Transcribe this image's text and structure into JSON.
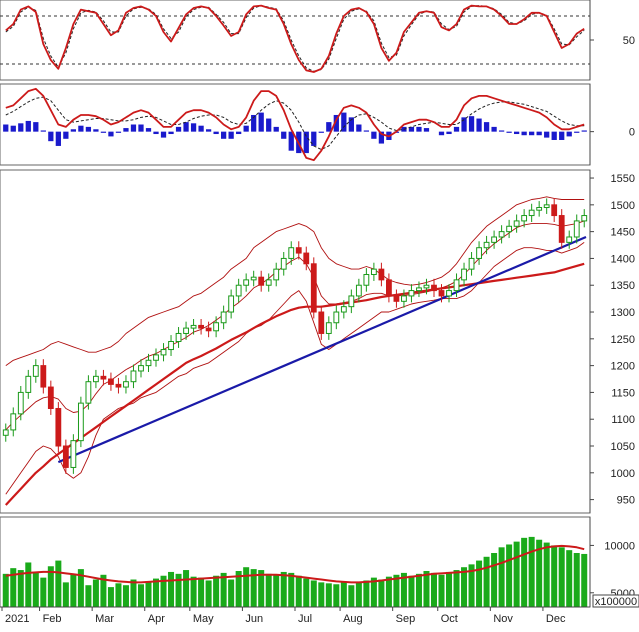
{
  "chart_data": [
    {
      "panel": "stochastic",
      "type": "line",
      "y_tick_labels": [
        "50"
      ],
      "reference_levels": [
        80,
        20
      ],
      "ylim": [
        0,
        100
      ],
      "series": [
        {
          "values": [
            62,
            70,
            88,
            92,
            85,
            45,
            25,
            14,
            40,
            70,
            88,
            86,
            84,
            70,
            56,
            62,
            84,
            90,
            92,
            88,
            80,
            60,
            48,
            65,
            82,
            90,
            92,
            90,
            80,
            68,
            55,
            60,
            82,
            92,
            93,
            90,
            88,
            70,
            45,
            25,
            12,
            10,
            14,
            30,
            58,
            80,
            88,
            90,
            85,
            70,
            40,
            24,
            34,
            60,
            72,
            84,
            86,
            84,
            66,
            62,
            70,
            88,
            93,
            92,
            92,
            88,
            80,
            70,
            70,
            76,
            84,
            84,
            80,
            60,
            40,
            45,
            58,
            64
          ]
        },
        {
          "values": [
            60,
            67,
            85,
            91,
            87,
            52,
            30,
            16,
            34,
            64,
            84,
            87,
            85,
            74,
            60,
            60,
            80,
            89,
            91,
            89,
            82,
            64,
            52,
            60,
            79,
            88,
            91,
            91,
            82,
            72,
            58,
            58,
            78,
            90,
            93,
            91,
            89,
            74,
            50,
            30,
            15,
            11,
            13,
            26,
            52,
            76,
            86,
            89,
            86,
            74,
            46,
            28,
            31,
            55,
            69,
            82,
            86,
            85,
            70,
            63,
            67,
            85,
            92,
            93,
            92,
            89,
            82,
            72,
            70,
            74,
            82,
            84,
            81,
            64,
            45,
            44,
            54,
            62
          ]
        }
      ]
    },
    {
      "panel": "macd",
      "type": "line",
      "y_tick_labels": [
        "0"
      ],
      "series": [
        {
          "values": [
            20,
            22,
            28,
            34,
            36,
            30,
            18,
            6,
            4,
            10,
            14,
            14,
            13,
            10,
            6,
            8,
            12,
            16,
            18,
            16,
            10,
            4,
            4,
            10,
            16,
            18,
            18,
            16,
            12,
            6,
            2,
            4,
            12,
            26,
            34,
            34,
            30,
            18,
            2,
            -10,
            -22,
            -24,
            -16,
            -4,
            10,
            20,
            22,
            20,
            16,
            6,
            -2,
            -4,
            0,
            6,
            8,
            10,
            10,
            8,
            4,
            4,
            10,
            22,
            28,
            30,
            30,
            28,
            26,
            24,
            22,
            20,
            18,
            16,
            12,
            6,
            2,
            2,
            4,
            6
          ]
        },
        {
          "values": [
            14,
            17,
            21,
            25,
            28,
            29,
            26,
            18,
            10,
            8,
            9,
            10,
            11,
            11,
            10,
            9,
            9,
            10,
            12,
            13,
            12,
            9,
            6,
            6,
            8,
            11,
            13,
            14,
            14,
            12,
            8,
            6,
            7,
            12,
            18,
            23,
            26,
            24,
            18,
            8,
            -4,
            -12,
            -15,
            -12,
            -4,
            4,
            10,
            14,
            15,
            12,
            8,
            3,
            1,
            2,
            4,
            6,
            7,
            8,
            7,
            6,
            6,
            10,
            15,
            19,
            22,
            24,
            25,
            25,
            24,
            23,
            21,
            19,
            17,
            13,
            9,
            6,
            5,
            5
          ]
        }
      ],
      "histogram": [
        6,
        5,
        7,
        9,
        8,
        1,
        -8,
        -12,
        -6,
        2,
        5,
        4,
        2,
        -1,
        -4,
        -1,
        3,
        6,
        6,
        3,
        -2,
        -5,
        -2,
        4,
        8,
        7,
        5,
        2,
        -2,
        -6,
        -6,
        -2,
        5,
        14,
        16,
        11,
        4,
        -6,
        -16,
        -18,
        -18,
        -12,
        -1,
        8,
        14,
        16,
        12,
        6,
        1,
        -6,
        -10,
        -7,
        -1,
        4,
        4,
        4,
        3,
        0,
        -3,
        -2,
        4,
        12,
        13,
        11,
        8,
        4,
        1,
        -1,
        -2,
        -3,
        -3,
        -3,
        -5,
        -7,
        -7,
        -4,
        -1,
        1
      ]
    },
    {
      "panel": "price",
      "type": "candlestick",
      "y_tick_labels": [
        "1550",
        "1500",
        "1450",
        "1400",
        "1350",
        "1300",
        "1250",
        "1200",
        "1150",
        "1100",
        "1050",
        "1000",
        "950"
      ],
      "ylim": [
        925,
        1565
      ],
      "close": [
        1080,
        1110,
        1150,
        1180,
        1200,
        1160,
        1120,
        1050,
        1010,
        1060,
        1130,
        1170,
        1180,
        1175,
        1165,
        1160,
        1170,
        1190,
        1200,
        1210,
        1220,
        1230,
        1245,
        1260,
        1270,
        1275,
        1270,
        1265,
        1280,
        1300,
        1330,
        1350,
        1360,
        1365,
        1350,
        1360,
        1380,
        1400,
        1420,
        1410,
        1390,
        1300,
        1260,
        1280,
        1300,
        1310,
        1330,
        1350,
        1370,
        1380,
        1360,
        1330,
        1320,
        1330,
        1340,
        1345,
        1350,
        1340,
        1330,
        1340,
        1360,
        1380,
        1400,
        1420,
        1430,
        1440,
        1450,
        1460,
        1470,
        1480,
        1490,
        1495,
        1500,
        1480,
        1430,
        1440,
        1470,
        1480
      ],
      "bollinger_upper": [
        1200,
        1210,
        1215,
        1220,
        1225,
        1230,
        1240,
        1245,
        1240,
        1235,
        1230,
        1225,
        1225,
        1230,
        1235,
        1245,
        1260,
        1270,
        1280,
        1290,
        1295,
        1300,
        1305,
        1310,
        1320,
        1330,
        1335,
        1345,
        1355,
        1365,
        1380,
        1390,
        1400,
        1420,
        1430,
        1440,
        1450,
        1455,
        1460,
        1465,
        1460,
        1450,
        1420,
        1400,
        1390,
        1385,
        1380,
        1380,
        1385,
        1380,
        1370,
        1360,
        1355,
        1352,
        1350,
        1352,
        1355,
        1360,
        1365,
        1375,
        1390,
        1410,
        1430,
        1445,
        1460,
        1470,
        1480,
        1490,
        1500,
        1505,
        1510,
        1512,
        1515,
        1512,
        1510,
        1510,
        1510,
        1510
      ],
      "bollinger_lower": [
        960,
        980,
        1000,
        1020,
        1040,
        1050,
        1045,
        1030,
        1000,
        990,
        1000,
        1030,
        1070,
        1100,
        1110,
        1120,
        1125,
        1130,
        1140,
        1145,
        1150,
        1160,
        1170,
        1180,
        1185,
        1195,
        1200,
        1205,
        1215,
        1225,
        1235,
        1245,
        1260,
        1270,
        1275,
        1285,
        1300,
        1315,
        1330,
        1340,
        1320,
        1280,
        1240,
        1230,
        1240,
        1250,
        1260,
        1270,
        1280,
        1290,
        1300,
        1300,
        1305,
        1310,
        1315,
        1318,
        1320,
        1322,
        1325,
        1325,
        1325,
        1330,
        1340,
        1355,
        1370,
        1385,
        1395,
        1405,
        1415,
        1420,
        1420,
        1418,
        1415,
        1415,
        1410,
        1415,
        1420,
        1430
      ],
      "ma_slow": [
        940,
        955,
        970,
        985,
        1000,
        1012,
        1025,
        1035,
        1045,
        1055,
        1065,
        1075,
        1085,
        1095,
        1105,
        1115,
        1125,
        1135,
        1145,
        1155,
        1165,
        1175,
        1185,
        1195,
        1205,
        1212,
        1218,
        1225,
        1232,
        1240,
        1248,
        1255,
        1262,
        1270,
        1278,
        1285,
        1292,
        1298,
        1304,
        1308,
        1310,
        1310,
        1310,
        1312,
        1314,
        1316,
        1318,
        1320,
        1322,
        1325,
        1328,
        1330,
        1332,
        1334,
        1336,
        1338,
        1340,
        1342,
        1344,
        1346,
        1348,
        1350,
        1352,
        1354,
        1356,
        1358,
        1360,
        1362,
        1364,
        1366,
        1368,
        1370,
        1372,
        1374,
        1378,
        1382,
        1386,
        1390
      ],
      "trendline": {
        "from": 1020,
        "to": 1440
      }
    },
    {
      "panel": "volume",
      "type": "bar",
      "y_tick_labels": [
        "10000",
        "5000"
      ],
      "unit_label": "x100000",
      "ylim": [
        3500,
        13000
      ],
      "values": [
        7000,
        7600,
        7400,
        8200,
        7100,
        6600,
        7800,
        8400,
        6100,
        7000,
        7500,
        5800,
        6400,
        6900,
        5600,
        6000,
        5800,
        6400,
        5900,
        6200,
        6500,
        6800,
        7200,
        7000,
        7400,
        6700,
        6600,
        6300,
        6800,
        7100,
        6400,
        7300,
        7700,
        7500,
        7400,
        7000,
        6900,
        7200,
        7100,
        6800,
        6500,
        6300,
        6100,
        6000,
        5900,
        6200,
        5800,
        6100,
        6300,
        6600,
        6400,
        6700,
        6900,
        7100,
        6800,
        7000,
        7300,
        7100,
        6900,
        7200,
        7400,
        7700,
        8000,
        8400,
        8800,
        9200,
        9800,
        10100,
        10400,
        10800,
        10900,
        10600,
        10300,
        10000,
        9800,
        9500,
        9200,
        9100
      ],
      "ma": [
        6800,
        6900,
        7000,
        7100,
        7150,
        7200,
        7200,
        7150,
        7050,
        6950,
        6850,
        6700,
        6550,
        6400,
        6300,
        6200,
        6150,
        6100,
        6100,
        6150,
        6200,
        6250,
        6300,
        6350,
        6400,
        6450,
        6500,
        6550,
        6600,
        6650,
        6700,
        6750,
        6800,
        6850,
        6900,
        6900,
        6900,
        6850,
        6800,
        6700,
        6600,
        6500,
        6400,
        6300,
        6200,
        6150,
        6100,
        6100,
        6150,
        6200,
        6300,
        6400,
        6500,
        6600,
        6700,
        6800,
        6900,
        7000,
        7050,
        7100,
        7150,
        7200,
        7300,
        7450,
        7650,
        7900,
        8150,
        8450,
        8750,
        9050,
        9350,
        9600,
        9800,
        9900,
        9950,
        9900,
        9800,
        9600
      ]
    }
  ],
  "x_axis": {
    "labels": [
      "2021",
      "Feb",
      "Mar",
      "Apr",
      "May",
      "Jun",
      "Jul",
      "Aug",
      "Sep",
      "Oct",
      "Nov",
      "Dec"
    ]
  },
  "colors": {
    "candle_up": "#1a9a1a",
    "candle_down": "#cc1a1a",
    "ma": "#cc1a1a",
    "bollinger": "#b01010",
    "trendline": "#1a1aa8",
    "histogram": "#1a1acc",
    "volume_bar": "#1aaa1a",
    "signal_dash": "#222222"
  }
}
